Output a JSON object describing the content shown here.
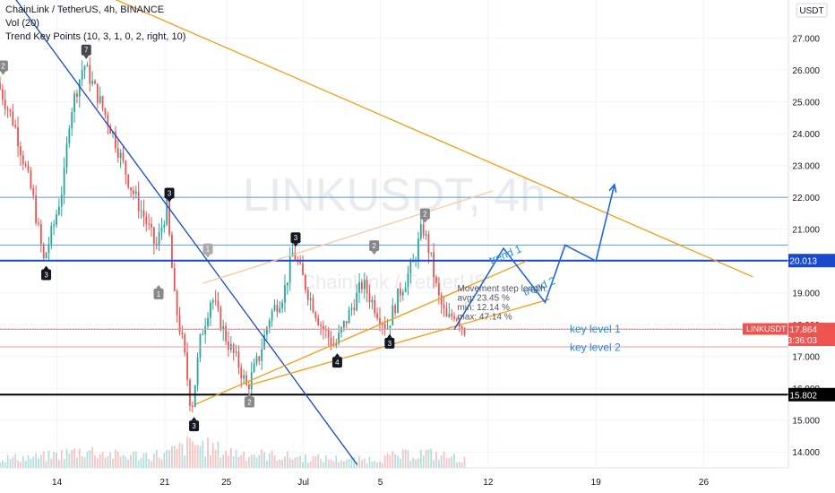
{
  "legend": {
    "title": "ChainLink / TetherUS, 4h, BINANCE",
    "volume": "Vol (20)",
    "indicator": "Trend Key Points (10, 3, 1, 0, 2, right, 10)"
  },
  "currency_badge": "USDT",
  "watermark": {
    "symbol": "LINKUSDT, 4h",
    "name": "ChainLink / TetherUS"
  },
  "chart_data": {
    "type": "candlestick",
    "symbol": "LINKUSDT",
    "timeframe": "4h",
    "exchange": "BINANCE",
    "ylim": [
      13.5,
      28.2
    ],
    "y_ticks": [
      "14.000",
      "15.000",
      "16.000",
      "17.000",
      "18.000",
      "19.000",
      "20.000",
      "21.000",
      "22.000",
      "23.000",
      "24.000",
      "25.000",
      "26.000",
      "27.000"
    ],
    "y_ticks_partial_top": "2",
    "x_ticks": [
      {
        "label": "14",
        "day": 14
      },
      {
        "label": "21",
        "day": 21
      },
      {
        "label": "25",
        "day": 25
      },
      {
        "label": "Jul",
        "day": 30
      },
      {
        "label": "5",
        "day": 35
      },
      {
        "label": "12",
        "day": 42
      },
      {
        "label": "19",
        "day": 49
      },
      {
        "label": "26",
        "day": 56
      }
    ],
    "xlim_days": [
      10.3,
      61.5
    ],
    "last_data_day": 40.6,
    "price_path": [
      [
        10.3,
        25.6
      ],
      [
        11.4,
        24.3
      ],
      [
        12.6,
        22.0
      ],
      [
        13.3,
        20.0
      ],
      [
        14.0,
        21.2
      ],
      [
        14.6,
        22.5
      ],
      [
        15.0,
        24.6
      ],
      [
        15.9,
        26.2
      ],
      [
        16.8,
        25.2
      ],
      [
        17.8,
        24.0
      ],
      [
        18.9,
        22.4
      ],
      [
        19.9,
        21.3
      ],
      [
        20.6,
        20.4
      ],
      [
        21.3,
        21.7
      ],
      [
        21.8,
        18.8
      ],
      [
        22.4,
        17.2
      ],
      [
        22.9,
        15.3
      ],
      [
        23.5,
        17.6
      ],
      [
        24.2,
        18.9
      ],
      [
        25.2,
        17.5
      ],
      [
        26.0,
        16.7
      ],
      [
        26.5,
        16.0
      ],
      [
        27.3,
        17.0
      ],
      [
        28.0,
        18.3
      ],
      [
        28.9,
        19.0
      ],
      [
        29.5,
        20.3
      ],
      [
        30.4,
        19.1
      ],
      [
        31.3,
        18.0
      ],
      [
        32.2,
        17.3
      ],
      [
        33.0,
        18.2
      ],
      [
        34.0,
        19.3
      ],
      [
        35.0,
        18.4
      ],
      [
        35.6,
        17.9
      ],
      [
        36.4,
        19.0
      ],
      [
        37.3,
        19.9
      ],
      [
        37.9,
        21.1
      ],
      [
        38.4,
        20.2
      ],
      [
        38.9,
        18.9
      ],
      [
        39.5,
        18.1
      ],
      [
        40.0,
        18.4
      ],
      [
        40.6,
        17.86
      ]
    ],
    "volume_profile": [
      [
        10.3,
        0.35
      ],
      [
        13.0,
        0.4
      ],
      [
        15.9,
        0.65
      ],
      [
        18.0,
        0.45
      ],
      [
        21.0,
        0.5
      ],
      [
        22.9,
        0.9
      ],
      [
        25.0,
        0.6
      ],
      [
        28.0,
        0.45
      ],
      [
        31.0,
        0.35
      ],
      [
        34.0,
        0.3
      ],
      [
        37.8,
        0.55
      ],
      [
        40.6,
        0.3
      ]
    ],
    "horizontal_levels": [
      {
        "price": 22.0,
        "color": "#5b9bd5",
        "width": 1
      },
      {
        "price": 20.5,
        "color": "#5b9bd5",
        "width": 1
      },
      {
        "price": 20.013,
        "color": "#1848cc",
        "width": 2,
        "label": "20.013"
      },
      {
        "price": 17.864,
        "color": "#ef5350",
        "width": 1,
        "dashed": true
      },
      {
        "price": 17.85,
        "color": "#ef9a9a",
        "width": 1
      },
      {
        "price": 17.3,
        "color": "#ef9a9a",
        "width": 1
      },
      {
        "price": 15.802,
        "color": "#000000",
        "width": 2,
        "label": "15.802"
      }
    ],
    "trend_lines": [
      {
        "from": [
          11.2,
          28.3
        ],
        "to": [
          33.5,
          13.6
        ],
        "color": "#1848cc"
      },
      {
        "from": [
          17.4,
          28.3
        ],
        "to": [
          59.2,
          19.5
        ],
        "color": "#f39c12"
      },
      {
        "from": [
          23.0,
          15.5
        ],
        "to": [
          44.5,
          20.0
        ],
        "color": "#f39c12"
      },
      {
        "from": [
          26.5,
          16.1
        ],
        "to": [
          46.0,
          18.8
        ],
        "color": "#f39c12"
      },
      {
        "from": [
          23.5,
          19.3
        ],
        "to": [
          42.3,
          22.2
        ],
        "color": "#f8c9a0"
      }
    ],
    "projection_path": [
      [
        39.8,
        17.85
      ],
      [
        43.0,
        20.4
      ],
      [
        45.7,
        18.7
      ],
      [
        47.0,
        20.5
      ],
      [
        49.0,
        20.0
      ],
      [
        50.2,
        22.4
      ]
    ],
    "key_points": [
      {
        "day": 10.5,
        "price": 25.85,
        "label": "2",
        "color": "#888888",
        "pos": "above"
      },
      {
        "day": 15.9,
        "price": 26.35,
        "label": "7",
        "color": "#434651",
        "pos": "above"
      },
      {
        "day": 13.3,
        "price": 19.85,
        "label": "3",
        "color": "#131722",
        "pos": "below"
      },
      {
        "day": 21.3,
        "price": 21.85,
        "label": "3",
        "color": "#131722",
        "pos": "above"
      },
      {
        "day": 20.6,
        "price": 19.25,
        "label": "1",
        "color": "#888888",
        "pos": "below"
      },
      {
        "day": 23.8,
        "price": 20.1,
        "label": "1",
        "color": "#aaaaaa",
        "pos": "above"
      },
      {
        "day": 22.9,
        "price": 15.1,
        "label": "3",
        "color": "#131722",
        "pos": "below"
      },
      {
        "day": 26.5,
        "price": 15.85,
        "label": "2",
        "color": "#888888",
        "pos": "below"
      },
      {
        "day": 29.5,
        "price": 20.45,
        "label": "3",
        "color": "#131722",
        "pos": "above"
      },
      {
        "day": 32.2,
        "price": 17.1,
        "label": "4",
        "color": "#131722",
        "pos": "below"
      },
      {
        "day": 34.6,
        "price": 20.2,
        "label": "2",
        "color": "#888888",
        "pos": "above"
      },
      {
        "day": 35.6,
        "price": 17.7,
        "label": "3",
        "color": "#131722",
        "pos": "below"
      },
      {
        "day": 37.9,
        "price": 21.2,
        "label": "2",
        "color": "#888888",
        "pos": "above"
      }
    ],
    "annotations": [
      {
        "text": "trend 1",
        "day": 42.2,
        "price": 19.9,
        "color": "#1e88e5",
        "rotate": -22,
        "size": 12
      },
      {
        "text": "trend 2",
        "day": 44.4,
        "price": 18.9,
        "color": "#1e88e5",
        "rotate": -22,
        "size": 12
      },
      {
        "text": "key level 1",
        "day": 47.3,
        "price": 17.75,
        "color": "#1e88e5",
        "size": 12
      },
      {
        "text": "key level 2",
        "day": 47.3,
        "price": 17.18,
        "color": "#1e88e5",
        "size": 12
      }
    ],
    "movement_stats": {
      "title": "Movement step length:",
      "avg": "avg: 23.45 %",
      "min": "min: 12.14 %",
      "max": "max: 47.14 %"
    },
    "price_labels": [
      {
        "text": "20.013",
        "price": 20.013,
        "bg": "#1848cc",
        "fg": "#ffffff"
      },
      {
        "text": "15.802",
        "price": 15.802,
        "bg": "#000000",
        "fg": "#ffffff"
      }
    ],
    "current_price": {
      "symbol": "LINKUSDT",
      "value": "17.864",
      "countdown": "03:36:03",
      "price": 17.864,
      "bg": "#ef5350"
    }
  }
}
